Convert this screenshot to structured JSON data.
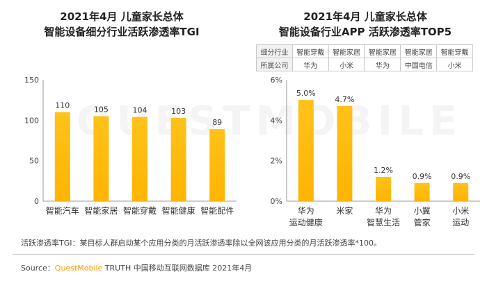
{
  "left": {
    "title_line1": "2021年4月 儿童家长总体",
    "title_line2": "智能设备细分行业活跃渗透率TGI"
  },
  "right": {
    "title_line1": "2021年4月 儿童家长总体",
    "title_line2": "智能设备行业APP 活跃渗透率TOP5",
    "table": {
      "row1_label": "细分行业",
      "row1": [
        "智能穿戴",
        "智能家居",
        "智能家居",
        "智能家居",
        "智能穿戴"
      ],
      "row2_label": "所属公司",
      "row2": [
        "华为",
        "小米",
        "华为",
        "中国电信",
        "小米"
      ]
    }
  },
  "chart_data": [
    {
      "type": "bar",
      "categories": [
        "智能汽车",
        "智能家居",
        "智能穿戴",
        "智能健康",
        "智能配件"
      ],
      "values": [
        110,
        105,
        104,
        103,
        89
      ],
      "value_labels": [
        "110",
        "105",
        "104",
        "103",
        "89"
      ],
      "ylim": [
        0,
        150
      ],
      "yticks": [
        "0",
        "50",
        "100",
        "150"
      ],
      "ytick_values": [
        0,
        50,
        100,
        150
      ],
      "color": "#FFB400"
    },
    {
      "type": "bar",
      "categories": [
        [
          "华为",
          "运动健康"
        ],
        [
          "米家",
          ""
        ],
        [
          "华为",
          "智慧生活"
        ],
        [
          "小翼",
          "管家"
        ],
        [
          "小米",
          "运动"
        ]
      ],
      "values": [
        5.0,
        4.7,
        1.2,
        0.9,
        0.9
      ],
      "value_labels": [
        "5.0%",
        "4.7%",
        "1.2%",
        "0.9%",
        "0.9%"
      ],
      "ylim": [
        0,
        6
      ],
      "yticks": [
        "0%",
        "2%",
        "4%",
        "6%"
      ],
      "ytick_values": [
        0,
        2,
        4,
        6
      ],
      "color": "#FFB400"
    }
  ],
  "footnote": "活跃渗透率TGI：某目标人群启动某个应用分类的月活跃渗透率除以全网该应用分类的月活跃渗透率*100。",
  "source": {
    "prefix": "Source：",
    "brand": "QuestMobile",
    "rest": " TRUTH 中国移动互联网数据库 2021年4月"
  },
  "watermark": "QUESTMOBILE"
}
